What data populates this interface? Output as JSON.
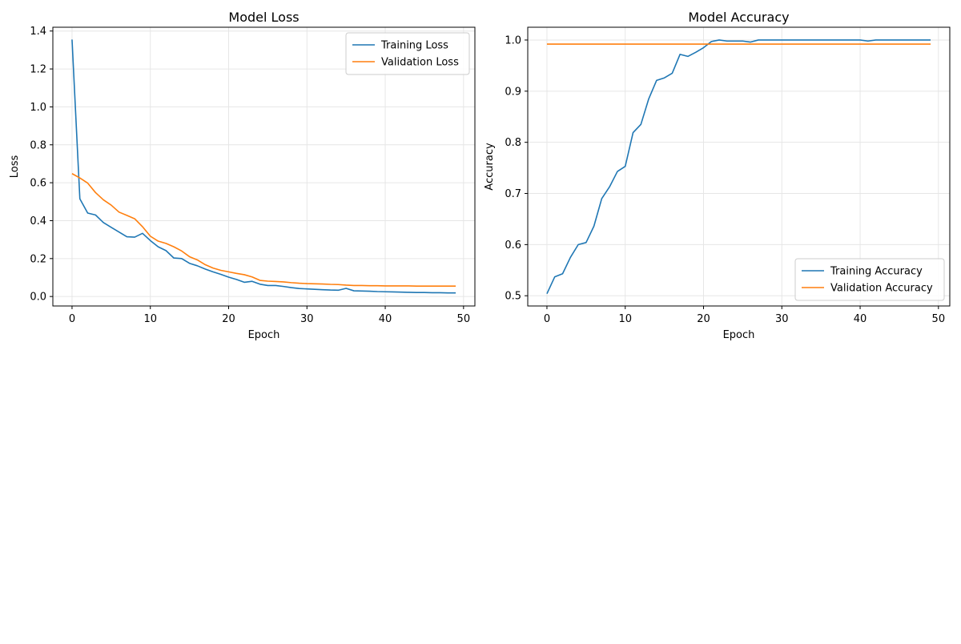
{
  "colors": {
    "training": "#1f77b4",
    "validation": "#ff7f0e",
    "grid": "#e6e6e6",
    "axis": "#000000"
  },
  "chart_data": [
    {
      "type": "line",
      "title": "Model Loss",
      "xlabel": "Epoch",
      "ylabel": "Loss",
      "xlim": [
        -2.45,
        51.45
      ],
      "ylim": [
        -0.05,
        1.42
      ],
      "xticks": [
        0,
        10,
        20,
        30,
        40,
        50
      ],
      "xtick_labels": [
        "0",
        "10",
        "20",
        "30",
        "40",
        "50"
      ],
      "yticks": [
        0.0,
        0.2,
        0.4,
        0.6,
        0.8,
        1.0,
        1.2,
        1.4
      ],
      "ytick_labels": [
        "0.0",
        "0.2",
        "0.4",
        "0.6",
        "0.8",
        "1.0",
        "1.2",
        "1.4"
      ],
      "grid": true,
      "legend_position": "top-right",
      "x": [
        0,
        1,
        2,
        3,
        4,
        5,
        6,
        7,
        8,
        9,
        10,
        11,
        12,
        13,
        14,
        15,
        16,
        17,
        18,
        19,
        20,
        21,
        22,
        23,
        24,
        25,
        26,
        27,
        28,
        29,
        30,
        31,
        32,
        33,
        34,
        35,
        36,
        37,
        38,
        39,
        40,
        41,
        42,
        43,
        44,
        45,
        46,
        47,
        48,
        49
      ],
      "series": [
        {
          "name": "Training Loss",
          "color": "#1f77b4",
          "values": [
            1.355,
            0.515,
            0.44,
            0.43,
            0.39,
            0.365,
            0.34,
            0.315,
            0.313,
            0.333,
            0.295,
            0.262,
            0.242,
            0.203,
            0.2,
            0.175,
            0.162,
            0.145,
            0.13,
            0.117,
            0.102,
            0.09,
            0.075,
            0.08,
            0.065,
            0.058,
            0.058,
            0.053,
            0.047,
            0.042,
            0.04,
            0.038,
            0.036,
            0.034,
            0.033,
            0.043,
            0.03,
            0.029,
            0.028,
            0.026,
            0.025,
            0.024,
            0.023,
            0.022,
            0.021,
            0.021,
            0.02,
            0.02,
            0.019,
            0.019
          ]
        },
        {
          "name": "Validation Loss",
          "color": "#ff7f0e",
          "values": [
            0.648,
            0.625,
            0.598,
            0.548,
            0.51,
            0.482,
            0.445,
            0.428,
            0.41,
            0.368,
            0.318,
            0.292,
            0.28,
            0.262,
            0.24,
            0.21,
            0.193,
            0.168,
            0.15,
            0.138,
            0.13,
            0.122,
            0.115,
            0.103,
            0.085,
            0.081,
            0.079,
            0.077,
            0.073,
            0.07,
            0.068,
            0.067,
            0.066,
            0.064,
            0.063,
            0.06,
            0.058,
            0.058,
            0.057,
            0.057,
            0.056,
            0.056,
            0.056,
            0.056,
            0.055,
            0.055,
            0.055,
            0.055,
            0.055,
            0.055
          ]
        }
      ]
    },
    {
      "type": "line",
      "title": "Model Accuracy",
      "xlabel": "Epoch",
      "ylabel": "Accuracy",
      "xlim": [
        -2.45,
        51.45
      ],
      "ylim": [
        0.48,
        1.025
      ],
      "xticks": [
        0,
        10,
        20,
        30,
        40,
        50
      ],
      "xtick_labels": [
        "0",
        "10",
        "20",
        "30",
        "40",
        "50"
      ],
      "yticks": [
        0.5,
        0.6,
        0.7,
        0.8,
        0.9,
        1.0
      ],
      "ytick_labels": [
        "0.5",
        "0.6",
        "0.7",
        "0.8",
        "0.9",
        "1.0"
      ],
      "grid": true,
      "legend_position": "bottom-right",
      "x": [
        0,
        1,
        2,
        3,
        4,
        5,
        6,
        7,
        8,
        9,
        10,
        11,
        12,
        13,
        14,
        15,
        16,
        17,
        18,
        19,
        20,
        21,
        22,
        23,
        24,
        25,
        26,
        27,
        28,
        29,
        30,
        31,
        32,
        33,
        34,
        35,
        36,
        37,
        38,
        39,
        40,
        41,
        42,
        43,
        44,
        45,
        46,
        47,
        48,
        49
      ],
      "series": [
        {
          "name": "Training Accuracy",
          "color": "#1f77b4",
          "values": [
            0.504,
            0.537,
            0.543,
            0.575,
            0.6,
            0.604,
            0.636,
            0.69,
            0.713,
            0.743,
            0.753,
            0.819,
            0.835,
            0.885,
            0.921,
            0.926,
            0.935,
            0.972,
            0.968,
            0.976,
            0.985,
            0.997,
            1.0,
            0.998,
            0.998,
            0.998,
            0.996,
            1.0,
            1.0,
            1.0,
            1.0,
            1.0,
            1.0,
            1.0,
            1.0,
            1.0,
            1.0,
            1.0,
            1.0,
            1.0,
            1.0,
            0.998,
            1.0,
            1.0,
            1.0,
            1.0,
            1.0,
            1.0,
            1.0,
            1.0
          ]
        },
        {
          "name": "Validation Accuracy",
          "color": "#ff7f0e",
          "values": [
            0.992,
            0.992,
            0.992,
            0.992,
            0.992,
            0.992,
            0.992,
            0.992,
            0.992,
            0.992,
            0.992,
            0.992,
            0.992,
            0.992,
            0.992,
            0.992,
            0.992,
            0.992,
            0.992,
            0.992,
            0.992,
            0.992,
            0.992,
            0.992,
            0.992,
            0.992,
            0.992,
            0.992,
            0.992,
            0.992,
            0.992,
            0.992,
            0.992,
            0.992,
            0.992,
            0.992,
            0.992,
            0.992,
            0.992,
            0.992,
            0.992,
            0.992,
            0.992,
            0.992,
            0.992,
            0.992,
            0.992,
            0.992,
            0.992,
            0.992
          ]
        }
      ]
    }
  ]
}
